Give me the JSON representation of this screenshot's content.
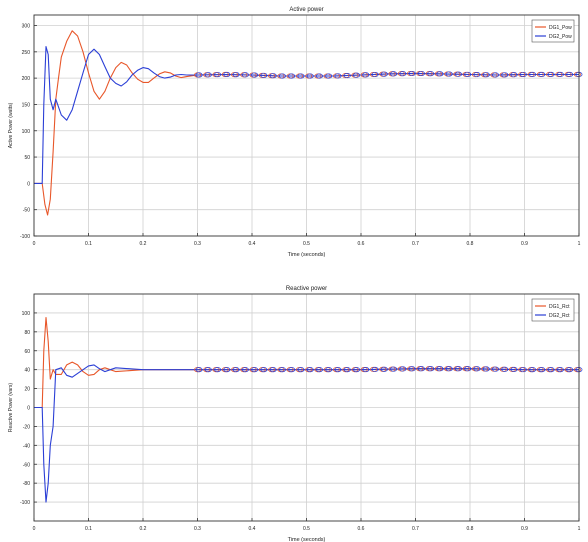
{
  "chart_data": [
    {
      "type": "line",
      "title": "Active power",
      "xlabel": "Time (seconds)",
      "ylabel": "Active Power (watts)",
      "xlim": [
        0,
        1
      ],
      "ylim": [
        -100,
        320
      ],
      "xticks": [
        0,
        0.1,
        0.2,
        0.3,
        0.4,
        0.5,
        0.6,
        0.7,
        0.8,
        0.9,
        1
      ],
      "xtick_labels": [
        "0",
        "0.1",
        "0.2",
        "0.3",
        "0.4",
        "0.5",
        "0.6",
        "0.7",
        "0.8",
        "0.9",
        "1"
      ],
      "yticks": [
        -100,
        -50,
        0,
        50,
        100,
        150,
        200,
        250,
        300
      ],
      "ytick_labels": [
        "-100",
        "-50",
        "0",
        "50",
        "100",
        "150",
        "200",
        "250",
        "300"
      ],
      "grid": true,
      "legend_position": "top-right",
      "series": [
        {
          "name": "DG1_Pow",
          "color": "#e8572a",
          "points": [
            [
              0,
              0
            ],
            [
              0.015,
              0
            ],
            [
              0.02,
              -40
            ],
            [
              0.025,
              -60
            ],
            [
              0.03,
              -30
            ],
            [
              0.035,
              60
            ],
            [
              0.04,
              160
            ],
            [
              0.045,
              200
            ],
            [
              0.05,
              240
            ],
            [
              0.06,
              270
            ],
            [
              0.07,
              290
            ],
            [
              0.08,
              280
            ],
            [
              0.09,
              250
            ],
            [
              0.1,
              210
            ],
            [
              0.11,
              175
            ],
            [
              0.12,
              160
            ],
            [
              0.13,
              175
            ],
            [
              0.14,
              200
            ],
            [
              0.15,
              220
            ],
            [
              0.16,
              230
            ],
            [
              0.17,
              225
            ],
            [
              0.18,
              210
            ],
            [
              0.19,
              198
            ],
            [
              0.2,
              192
            ],
            [
              0.21,
              192
            ],
            [
              0.22,
              200
            ],
            [
              0.23,
              208
            ],
            [
              0.24,
              212
            ],
            [
              0.25,
              210
            ],
            [
              0.26,
              204
            ],
            [
              0.27,
              201
            ],
            [
              0.28,
              203
            ],
            [
              0.3,
              206
            ],
            [
              0.35,
              207
            ],
            [
              0.4,
              206
            ],
            [
              0.45,
              204
            ],
            [
              0.5,
              204
            ],
            [
              0.55,
              204
            ],
            [
              0.6,
              206
            ],
            [
              0.65,
              208
            ],
            [
              0.7,
              209
            ],
            [
              0.75,
              208
            ],
            [
              0.8,
              207
            ],
            [
              0.85,
              206
            ],
            [
              0.9,
              207
            ],
            [
              0.95,
              207
            ],
            [
              1,
              207
            ]
          ]
        },
        {
          "name": "DG2_Pow",
          "color": "#2b3fd6",
          "points": [
            [
              0,
              0
            ],
            [
              0.015,
              0
            ],
            [
              0.018,
              150
            ],
            [
              0.022,
              260
            ],
            [
              0.026,
              245
            ],
            [
              0.03,
              160
            ],
            [
              0.035,
              140
            ],
            [
              0.04,
              160
            ],
            [
              0.05,
              130
            ],
            [
              0.06,
              120
            ],
            [
              0.07,
              140
            ],
            [
              0.08,
              175
            ],
            [
              0.09,
              210
            ],
            [
              0.1,
              245
            ],
            [
              0.11,
              255
            ],
            [
              0.12,
              245
            ],
            [
              0.13,
              222
            ],
            [
              0.14,
              200
            ],
            [
              0.15,
              190
            ],
            [
              0.16,
              185
            ],
            [
              0.17,
              193
            ],
            [
              0.18,
              206
            ],
            [
              0.19,
              215
            ],
            [
              0.2,
              220
            ],
            [
              0.21,
              218
            ],
            [
              0.22,
              210
            ],
            [
              0.23,
              203
            ],
            [
              0.24,
              200
            ],
            [
              0.25,
              202
            ],
            [
              0.26,
              206
            ],
            [
              0.27,
              207
            ],
            [
              0.28,
              206
            ],
            [
              0.3,
              206
            ],
            [
              0.35,
              207
            ],
            [
              0.4,
              206
            ],
            [
              0.45,
              204
            ],
            [
              0.5,
              204
            ],
            [
              0.55,
              204
            ],
            [
              0.6,
              206
            ],
            [
              0.65,
              208
            ],
            [
              0.7,
              209
            ],
            [
              0.75,
              208
            ],
            [
              0.8,
              207
            ],
            [
              0.85,
              206
            ],
            [
              0.9,
              207
            ],
            [
              0.95,
              207
            ],
            [
              1,
              207
            ]
          ]
        }
      ]
    },
    {
      "type": "line",
      "title": "Reactive power",
      "xlabel": "Time (seconds)",
      "ylabel": "Reactive Power (vars)",
      "xlim": [
        0,
        1
      ],
      "ylim": [
        -120,
        120
      ],
      "xticks": [
        0,
        0.1,
        0.2,
        0.3,
        0.4,
        0.5,
        0.6,
        0.7,
        0.8,
        0.9,
        1
      ],
      "xtick_labels": [
        "0",
        "0.1",
        "0.2",
        "0.3",
        "0.4",
        "0.5",
        "0.6",
        "0.7",
        "0.8",
        "0.9",
        "1"
      ],
      "yticks": [
        -100,
        -80,
        -60,
        -40,
        -20,
        0,
        20,
        40,
        60,
        80,
        100
      ],
      "ytick_labels": [
        "-100",
        "-80",
        "-60",
        "-40",
        "-20",
        "0",
        "20",
        "40",
        "60",
        "80",
        "100"
      ],
      "grid": true,
      "legend_position": "top-right",
      "series": [
        {
          "name": "DG1_Rct",
          "color": "#e8572a",
          "points": [
            [
              0,
              0
            ],
            [
              0.015,
              0
            ],
            [
              0.018,
              60
            ],
            [
              0.022,
              95
            ],
            [
              0.026,
              70
            ],
            [
              0.03,
              30
            ],
            [
              0.035,
              40
            ],
            [
              0.04,
              35
            ],
            [
              0.05,
              35
            ],
            [
              0.06,
              45
            ],
            [
              0.07,
              48
            ],
            [
              0.08,
              45
            ],
            [
              0.09,
              38
            ],
            [
              0.1,
              34
            ],
            [
              0.11,
              35
            ],
            [
              0.12,
              40
            ],
            [
              0.13,
              42
            ],
            [
              0.14,
              40
            ],
            [
              0.15,
              38
            ],
            [
              0.2,
              40
            ],
            [
              0.3,
              40
            ],
            [
              0.4,
              40
            ],
            [
              0.5,
              40
            ],
            [
              0.6,
              40
            ],
            [
              0.7,
              41
            ],
            [
              0.8,
              41
            ],
            [
              0.9,
              40
            ],
            [
              1,
              40
            ]
          ]
        },
        {
          "name": "DG2_Rct",
          "color": "#2b3fd6",
          "points": [
            [
              0,
              0
            ],
            [
              0.015,
              0
            ],
            [
              0.018,
              -60
            ],
            [
              0.022,
              -100
            ],
            [
              0.026,
              -80
            ],
            [
              0.03,
              -40
            ],
            [
              0.035,
              -20
            ],
            [
              0.04,
              40
            ],
            [
              0.05,
              42
            ],
            [
              0.06,
              34
            ],
            [
              0.07,
              32
            ],
            [
              0.08,
              36
            ],
            [
              0.09,
              40
            ],
            [
              0.1,
              44
            ],
            [
              0.11,
              45
            ],
            [
              0.12,
              41
            ],
            [
              0.13,
              38
            ],
            [
              0.14,
              40
            ],
            [
              0.15,
              42
            ],
            [
              0.2,
              40
            ],
            [
              0.3,
              40
            ],
            [
              0.4,
              40
            ],
            [
              0.5,
              40
            ],
            [
              0.6,
              40
            ],
            [
              0.7,
              41
            ],
            [
              0.8,
              41
            ],
            [
              0.9,
              40
            ],
            [
              1,
              40
            ]
          ]
        }
      ]
    }
  ]
}
